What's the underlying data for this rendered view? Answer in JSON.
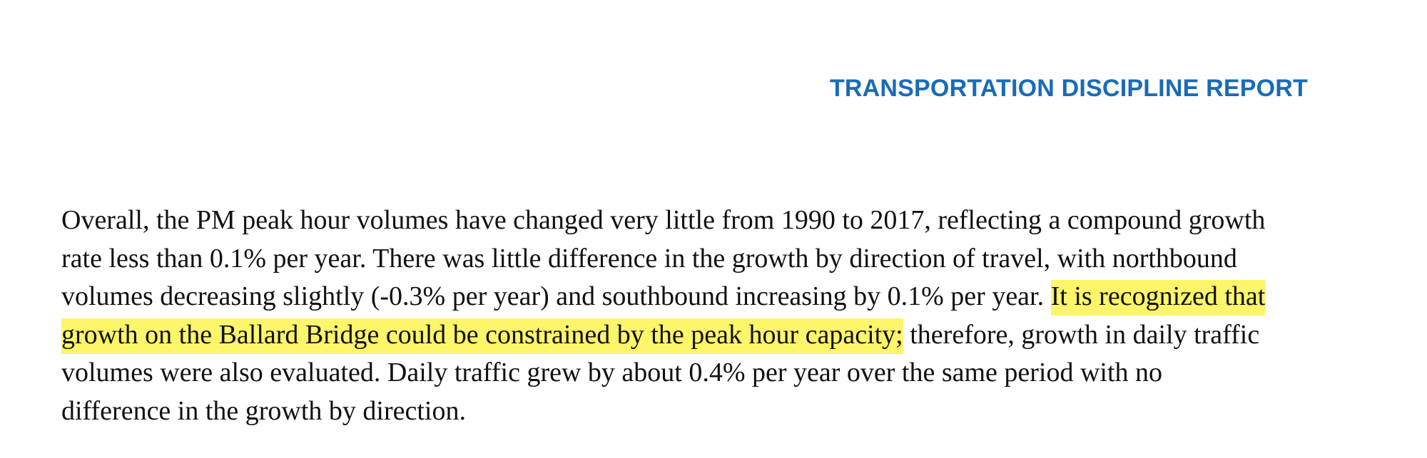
{
  "header": {
    "title": "TRANSPORTATION DISCIPLINE REPORT"
  },
  "colors": {
    "header": "#1a6bb8",
    "highlight": "#fdf56a",
    "text": "#111111"
  },
  "paragraph": {
    "line1": "Overall, the PM peak hour volumes have changed very little from 1990 to 2017, reflecting a compound growth",
    "line2": "rate less than 0.1% per year. There was little difference in the growth by direction of travel, with northbound",
    "line3_plain": "volumes decreasing slightly (-0.3% per year) and southbound increasing by 0.1% per year. ",
    "line3_highlight": "It is recognized that",
    "line4_highlight": "growth on the Ballard Bridge could be constrained by the peak hour capacity;",
    "line4_plain": " therefore, growth in daily traffic",
    "line5": "volumes were also evaluated. Daily traffic grew by about 0.4% per year over the same period with no",
    "line6": "difference in the growth by direction."
  }
}
